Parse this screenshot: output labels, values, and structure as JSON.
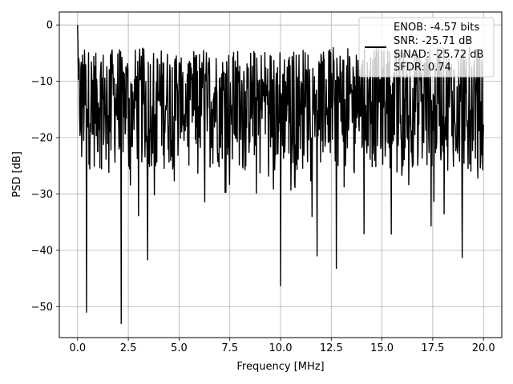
{
  "chart_data": {
    "type": "line",
    "title": "",
    "xlabel": "Frequency [MHz]",
    "ylabel": "PSD [dB]",
    "xlim": [
      -0.9,
      20.9
    ],
    "ylim": [
      -55.5,
      2.3
    ],
    "x_ticks": [
      0.0,
      2.5,
      5.0,
      7.5,
      10.0,
      12.5,
      15.0,
      17.5,
      20.0
    ],
    "x_tick_labels": [
      "0.0",
      "2.5",
      "5.0",
      "7.5",
      "10.0",
      "12.5",
      "15.0",
      "17.5",
      "20.0"
    ],
    "y_ticks": [
      0,
      -10,
      -20,
      -30,
      -40,
      -50
    ],
    "y_tick_labels": [
      "0",
      "−10",
      "−20",
      "−30",
      "−40",
      "−50"
    ],
    "grid": true,
    "line_color": "#000000",
    "legend": {
      "placement": "top-right",
      "entries": [
        "ENOB: -4.57 bits",
        "SNR: -25.71 dB",
        "SINAD: -25.72 dB",
        "SFDR: 0.74"
      ]
    },
    "series": [
      {
        "x_start": 0.0,
        "x_end": 20.0,
        "num_points": 1000,
        "typical_range_db": [
          -26,
          -4
        ],
        "min_db": -53.0,
        "max_db": 0.0,
        "notable_points": [
          {
            "x": 0.0,
            "y": 0.0
          },
          {
            "x": 0.44,
            "y": -51.0
          },
          {
            "x": 2.15,
            "y": -53.0
          },
          {
            "x": 3.45,
            "y": -41.7
          },
          {
            "x": 10.0,
            "y": -46.3
          },
          {
            "x": 11.8,
            "y": -41.0
          },
          {
            "x": 12.75,
            "y": -43.2
          },
          {
            "x": 18.95,
            "y": -41.3
          },
          {
            "x": 0.9,
            "y": -5.0
          }
        ]
      }
    ]
  }
}
